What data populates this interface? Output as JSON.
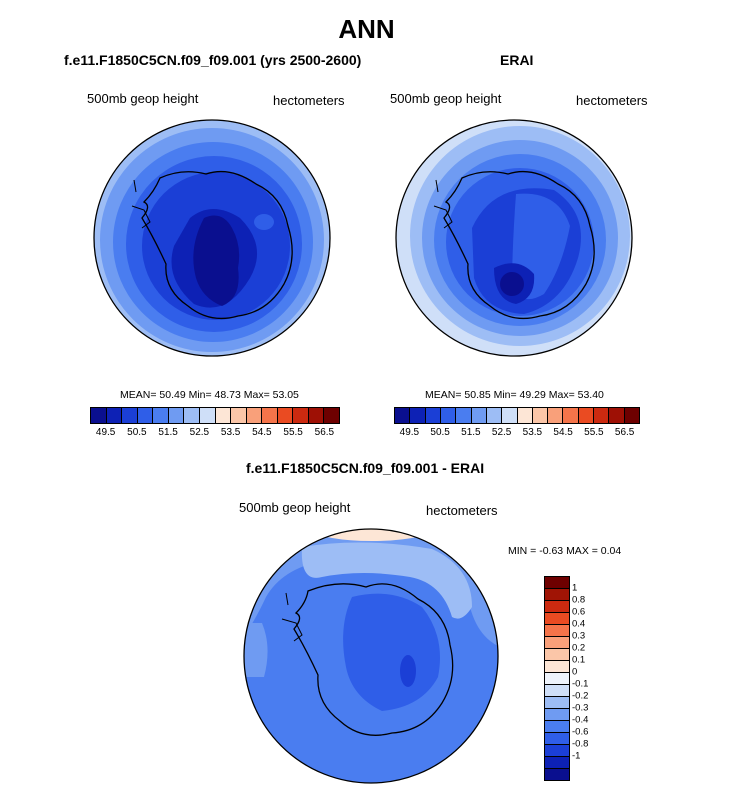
{
  "page_title": "ANN",
  "panels": {
    "top_left": {
      "title": "f.e11.F1850C5CN.f09_f09.001 (yrs 2500-2600)",
      "left_label": "500mb geop height",
      "right_label": "hectometers",
      "stats": "MEAN= 50.49 Min= 48.73 Max= 53.05"
    },
    "top_right": {
      "title": "ERAI",
      "left_label": "500mb geop height",
      "right_label": "hectometers",
      "stats": "MEAN= 50.85 Min= 49.29 Max= 53.40"
    },
    "bottom": {
      "title": "f.e11.F1850C5CN.f09_f09.001 - ERAI",
      "left_label": "500mb geop height",
      "right_label": "hectometers",
      "stats": "MIN = -0.63 MAX = 0.04"
    }
  },
  "colorbar_abs": {
    "colors": [
      "#0a0f8f",
      "#0d21b5",
      "#1b3fd6",
      "#2f5ee8",
      "#4a7df0",
      "#6f9bf2",
      "#9dbdf5",
      "#cfdff8",
      "#fde6d6",
      "#fbc6a8",
      "#f9a07a",
      "#f5744a",
      "#ea4b22",
      "#cc2a10",
      "#9e1005",
      "#6e0000"
    ],
    "ticks": [
      "49.5",
      "50.5",
      "51.5",
      "52.5",
      "53.5",
      "54.5",
      "55.5",
      "56.5"
    ]
  },
  "colorbar_diff": {
    "colors": [
      "#6e0000",
      "#a01405",
      "#cc2a10",
      "#ea4b22",
      "#f5744a",
      "#f9a07a",
      "#fbc6a8",
      "#fde6d6",
      "#eef3fb",
      "#cfdff8",
      "#9dbdf5",
      "#6f9bf2",
      "#4a7df0",
      "#2f5ee8",
      "#1b3fd6",
      "#0d21b5",
      "#0a0f8f"
    ],
    "ticks": [
      "1",
      "0.8",
      "0.6",
      "0.4",
      "0.3",
      "0.2",
      "0.1",
      "0",
      "-0.1",
      "-0.2",
      "-0.3",
      "-0.4",
      "-0.6",
      "-0.8",
      "-1"
    ]
  }
}
